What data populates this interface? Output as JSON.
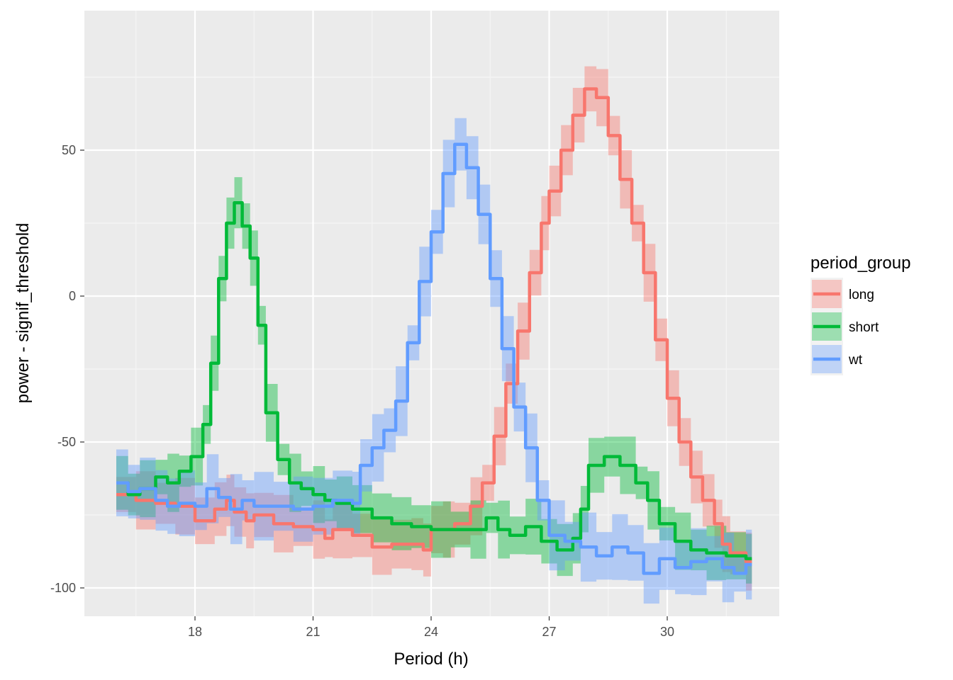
{
  "chart_data": {
    "type": "line",
    "title": "",
    "xlabel": "Period (h)",
    "ylabel": "power - signif_threshold",
    "xlim": [
      15.9,
      32.3
    ],
    "ylim": [
      -110,
      99
    ],
    "x_ticks": [
      18,
      21,
      24,
      27,
      30
    ],
    "y_ticks": [
      -100,
      -50,
      0,
      50
    ],
    "grid": true,
    "legend": {
      "title": "period_group",
      "placement": "right",
      "entries": [
        "long",
        "short",
        "wt"
      ]
    },
    "series": [
      {
        "name": "long",
        "color": "#F8766D",
        "points": [
          [
            16.0,
            -68
          ],
          [
            16.5,
            -70
          ],
          [
            17.0,
            -71
          ],
          [
            17.5,
            -72
          ],
          [
            18.0,
            -77
          ],
          [
            18.5,
            -73
          ],
          [
            18.8,
            -70
          ],
          [
            19.0,
            -74
          ],
          [
            19.3,
            -77
          ],
          [
            19.5,
            -75
          ],
          [
            20.0,
            -78
          ],
          [
            20.5,
            -79
          ],
          [
            21.0,
            -80
          ],
          [
            21.3,
            -83
          ],
          [
            21.5,
            -80
          ],
          [
            22.0,
            -82
          ],
          [
            22.5,
            -86
          ],
          [
            23.0,
            -85
          ],
          [
            23.5,
            -85
          ],
          [
            23.8,
            -87
          ],
          [
            24.0,
            -80
          ],
          [
            24.3,
            -80
          ],
          [
            24.6,
            -78
          ],
          [
            25.0,
            -72
          ],
          [
            25.3,
            -64
          ],
          [
            25.6,
            -48
          ],
          [
            25.9,
            -30
          ],
          [
            26.2,
            -12
          ],
          [
            26.5,
            8
          ],
          [
            26.8,
            25
          ],
          [
            27.0,
            36
          ],
          [
            27.3,
            50
          ],
          [
            27.6,
            62
          ],
          [
            27.9,
            71
          ],
          [
            28.2,
            68
          ],
          [
            28.5,
            55
          ],
          [
            28.8,
            40
          ],
          [
            29.1,
            25
          ],
          [
            29.4,
            8
          ],
          [
            29.7,
            -15
          ],
          [
            30.0,
            -35
          ],
          [
            30.3,
            -50
          ],
          [
            30.6,
            -62
          ],
          [
            30.9,
            -70
          ],
          [
            31.2,
            -78
          ],
          [
            31.4,
            -85
          ],
          [
            31.6,
            -88
          ],
          [
            32.0,
            -91
          ]
        ],
        "band": [
          6,
          10
        ]
      },
      {
        "name": "short",
        "color": "#00BA38",
        "points": [
          [
            16.0,
            -64
          ],
          [
            16.3,
            -68
          ],
          [
            16.6,
            -66
          ],
          [
            17.0,
            -62
          ],
          [
            17.3,
            -64
          ],
          [
            17.6,
            -60
          ],
          [
            17.9,
            -55
          ],
          [
            18.2,
            -44
          ],
          [
            18.4,
            -23
          ],
          [
            18.6,
            6
          ],
          [
            18.8,
            25
          ],
          [
            19.0,
            32
          ],
          [
            19.2,
            24
          ],
          [
            19.4,
            13
          ],
          [
            19.6,
            -10
          ],
          [
            19.8,
            -40
          ],
          [
            20.1,
            -56
          ],
          [
            20.4,
            -64
          ],
          [
            20.7,
            -66
          ],
          [
            21.0,
            -68
          ],
          [
            21.3,
            -70
          ],
          [
            21.6,
            -71
          ],
          [
            22.0,
            -73
          ],
          [
            22.5,
            -76
          ],
          [
            23.0,
            -78
          ],
          [
            23.5,
            -79
          ],
          [
            24.0,
            -80
          ],
          [
            24.5,
            -80
          ],
          [
            25.0,
            -80
          ],
          [
            25.4,
            -76
          ],
          [
            25.7,
            -80
          ],
          [
            26.0,
            -82
          ],
          [
            26.4,
            -79
          ],
          [
            26.8,
            -84
          ],
          [
            27.2,
            -87
          ],
          [
            27.6,
            -83
          ],
          [
            27.8,
            -73
          ],
          [
            28.0,
            -58
          ],
          [
            28.4,
            -55
          ],
          [
            28.8,
            -58
          ],
          [
            29.2,
            -64
          ],
          [
            29.5,
            -70
          ],
          [
            29.8,
            -78
          ],
          [
            30.2,
            -84
          ],
          [
            30.6,
            -87
          ],
          [
            31.0,
            -88
          ],
          [
            31.5,
            -89
          ],
          [
            32.0,
            -90
          ]
        ],
        "band": [
          5,
          10
        ]
      },
      {
        "name": "wt",
        "color": "#619CFF",
        "points": [
          [
            16.0,
            -64
          ],
          [
            16.3,
            -67
          ],
          [
            16.6,
            -66
          ],
          [
            17.0,
            -70
          ],
          [
            17.3,
            -72
          ],
          [
            17.6,
            -71
          ],
          [
            18.0,
            -72
          ],
          [
            18.3,
            -66
          ],
          [
            18.6,
            -69
          ],
          [
            18.9,
            -73
          ],
          [
            19.2,
            -70
          ],
          [
            19.5,
            -72
          ],
          [
            20.0,
            -72
          ],
          [
            20.5,
            -73
          ],
          [
            21.0,
            -72
          ],
          [
            21.5,
            -70
          ],
          [
            22.0,
            -71
          ],
          [
            22.2,
            -58
          ],
          [
            22.5,
            -52
          ],
          [
            22.8,
            -46
          ],
          [
            23.1,
            -36
          ],
          [
            23.4,
            -16
          ],
          [
            23.7,
            5
          ],
          [
            24.0,
            22
          ],
          [
            24.3,
            42
          ],
          [
            24.6,
            52
          ],
          [
            24.9,
            44
          ],
          [
            25.2,
            28
          ],
          [
            25.5,
            6
          ],
          [
            25.8,
            -18
          ],
          [
            26.1,
            -38
          ],
          [
            26.4,
            -52
          ],
          [
            26.7,
            -70
          ],
          [
            27.0,
            -82
          ],
          [
            27.4,
            -84
          ],
          [
            27.8,
            -86
          ],
          [
            28.2,
            -89
          ],
          [
            28.6,
            -86
          ],
          [
            29.0,
            -88
          ],
          [
            29.4,
            -95
          ],
          [
            29.8,
            -90
          ],
          [
            30.2,
            -93
          ],
          [
            30.6,
            -91
          ],
          [
            31.0,
            -90
          ],
          [
            31.4,
            -93
          ],
          [
            31.7,
            -95
          ],
          [
            32.0,
            -92
          ]
        ],
        "band": [
          6,
          12
        ]
      }
    ]
  }
}
